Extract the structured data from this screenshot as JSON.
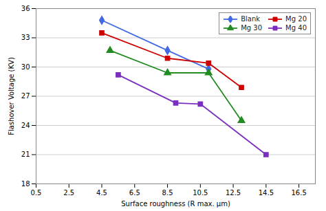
{
  "chart_data": {
    "type": "line",
    "xlabel": "Surface roughness (R max. μm)",
    "ylabel": "Flashover Voltage (KV)",
    "series": [
      {
        "name": "Blank",
        "color": "#4169E1",
        "marker": "diamond",
        "x": [
          4.5,
          8.5,
          11.0
        ],
        "values": [
          34.8,
          31.7,
          29.8
        ]
      },
      {
        "name": "Mg 20",
        "color": "#CC0000",
        "marker": "square",
        "x": [
          4.5,
          8.5,
          11.0,
          13.0
        ],
        "values": [
          33.5,
          30.9,
          30.4,
          27.9
        ]
      },
      {
        "name": "Mg 30",
        "color": "#228B22",
        "marker": "triangle",
        "x": [
          5.0,
          8.5,
          11.0,
          13.0
        ],
        "values": [
          31.7,
          29.4,
          29.4,
          24.5
        ]
      },
      {
        "name": "Mg 40",
        "color": "#7B2FBE",
        "marker": "square",
        "x": [
          5.5,
          9.0,
          10.5,
          14.5
        ],
        "values": [
          29.2,
          26.3,
          26.2,
          21.0
        ]
      }
    ],
    "xlim": [
      0.5,
      17.5
    ],
    "xticks": [
      0.5,
      2.5,
      4.5,
      6.5,
      8.5,
      10.5,
      12.5,
      14.5,
      16.5
    ],
    "ylim": [
      18,
      36
    ],
    "yticks": [
      18,
      21,
      24,
      27,
      30,
      33,
      36
    ],
    "grid": true,
    "legend": "upper right"
  }
}
